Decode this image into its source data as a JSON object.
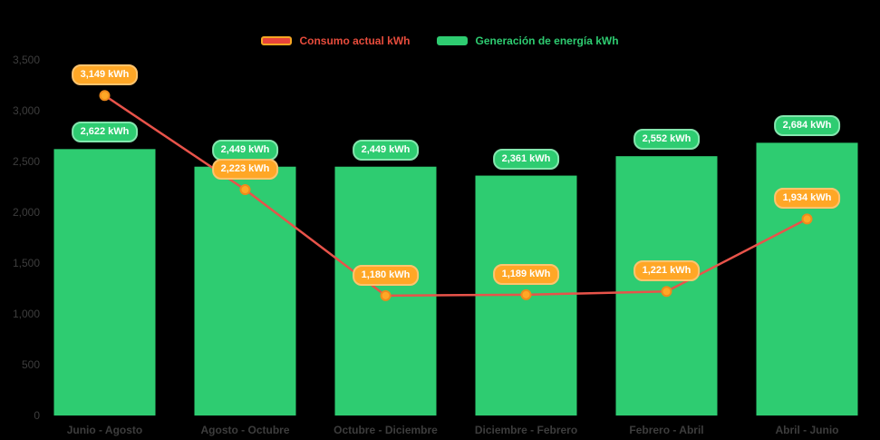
{
  "page": {
    "background": "#000000"
  },
  "legend": {
    "items": [
      {
        "label": "Consumo actual kWh",
        "swatch_fill": "#e8443a",
        "swatch_border": "#f5a623",
        "text_color": "#e74c3c"
      },
      {
        "label": "Generación de energía kWh",
        "swatch_fill": "#2ecc71",
        "swatch_border": "#2ecc71",
        "text_color": "#2ecc71"
      }
    ]
  },
  "chart_data": {
    "type": "bar+line",
    "categories": [
      "Junio - Agosto",
      "Agosto - Octubre",
      "Octubre - Diciembre",
      "Diciembre - Febrero",
      "Febrero - Abril",
      "Abril - Junio"
    ],
    "series": [
      {
        "name": "Generación de energía kWh",
        "type": "bar",
        "color": "#2ecc71",
        "values": [
          2622,
          2449,
          2449,
          2361,
          2552,
          2684
        ],
        "labels": [
          "2,622 kWh",
          "2,449 kWh",
          "2,449 kWh",
          "2,361 kWh",
          "2,552 kWh",
          "2,684 kWh"
        ],
        "badge_bg": "#2ecc71",
        "badge_border": "#84e6ae",
        "badge_text": "#ffffff"
      },
      {
        "name": "Consumo actual kWh",
        "type": "line",
        "color": "#e8534a",
        "marker_fill": "#ffa726",
        "marker_stroke": "#ef8a1c",
        "values": [
          3149,
          2223,
          1180,
          1189,
          1221,
          1934
        ],
        "labels": [
          "3,149 kWh",
          "2,223 kWh",
          "1,180 kWh",
          "1,189 kWh",
          "1,221 kWh",
          "1,934 kWh"
        ],
        "badge_bg": "#ffa726",
        "badge_border": "#ffc46e",
        "badge_text": "#ffffff"
      }
    ],
    "ylim": [
      0,
      3500
    ],
    "yticks": [
      0,
      500,
      1000,
      1500,
      2000,
      2500,
      3000,
      3500
    ],
    "ytick_labels": [
      "0",
      "500",
      "1,000",
      "1,500",
      "2,000",
      "2,500",
      "3,000",
      "3,500"
    ],
    "legend_position": "top-center",
    "grid": false
  }
}
